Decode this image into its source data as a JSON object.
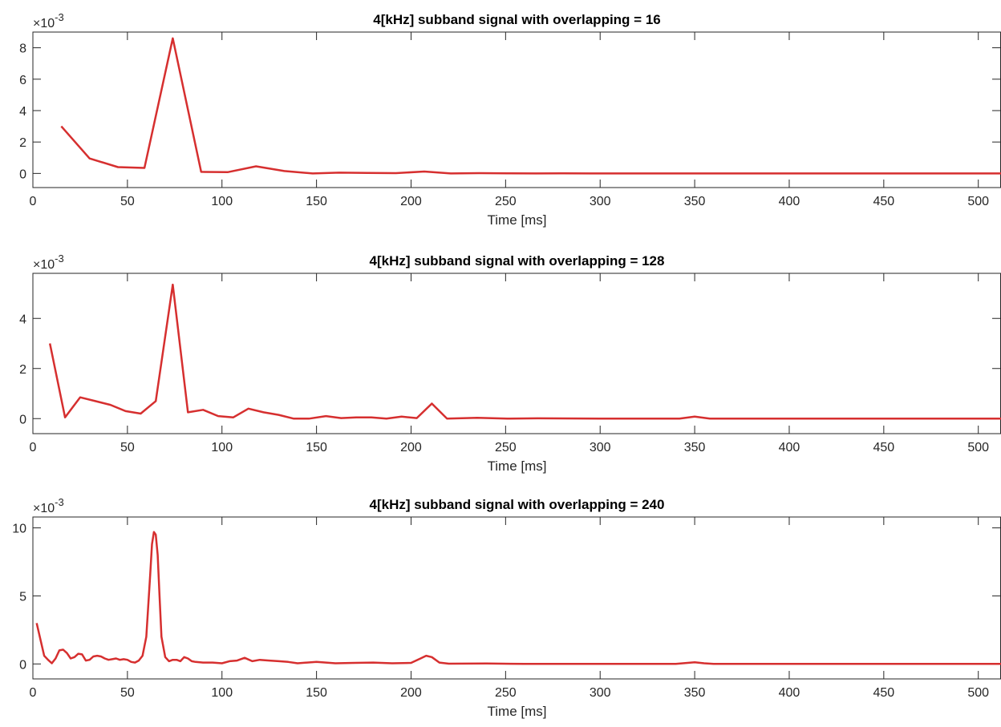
{
  "chart_data": [
    {
      "type": "line",
      "title": "4[kHz] subband signal with overlapping = 16",
      "xlabel": "Time [ms]",
      "ylabel": "",
      "y_scale_label": "×10",
      "y_scale_exponent": "-3",
      "xlim": [
        0,
        512
      ],
      "ylim": [
        -0.9,
        9.0
      ],
      "xticks": [
        0,
        50,
        100,
        150,
        200,
        250,
        300,
        350,
        400,
        450,
        500
      ],
      "yticks": [
        0,
        2,
        4,
        6,
        8
      ],
      "grid": false,
      "line_color": "#d62f2f",
      "series": [
        {
          "x": [
            15,
            30,
            45,
            59,
            74,
            89,
            103,
            118,
            133,
            148,
            162,
            177,
            192,
            207,
            221,
            236,
            251,
            266,
            280,
            295,
            310,
            325,
            339,
            354,
            369,
            384,
            398,
            413,
            428,
            443,
            457,
            472,
            487,
            502,
            512
          ],
          "values": [
            3.0,
            0.95,
            0.4,
            0.35,
            8.6,
            0.1,
            0.08,
            0.45,
            0.15,
            0.0,
            0.05,
            0.03,
            0.02,
            0.12,
            0.0,
            0.02,
            0.01,
            0.0,
            0.01,
            0.0,
            0.0,
            0.0,
            0.0,
            0.0,
            0.0,
            0.0,
            0.0,
            0.0,
            0.0,
            0.0,
            0.0,
            0.0,
            0.0,
            0.0,
            0.0
          ]
        }
      ]
    },
    {
      "type": "line",
      "title": "4[kHz] subband signal with overlapping = 128",
      "xlabel": "Time [ms]",
      "ylabel": "",
      "y_scale_label": "×10",
      "y_scale_exponent": "-3",
      "xlim": [
        0,
        512
      ],
      "ylim": [
        -0.6,
        5.8
      ],
      "xticks": [
        0,
        50,
        100,
        150,
        200,
        250,
        300,
        350,
        400,
        450,
        500
      ],
      "yticks": [
        0,
        2,
        4
      ],
      "grid": false,
      "line_color": "#d62f2f",
      "series": [
        {
          "x": [
            9,
            17,
            25,
            33,
            41,
            49,
            57,
            65,
            74,
            82,
            90,
            98,
            106,
            114,
            122,
            130,
            138,
            146,
            155,
            163,
            171,
            179,
            187,
            195,
            203,
            211,
            219,
            235,
            251,
            267,
            300,
            342,
            350,
            358,
            400,
            450,
            512
          ],
          "values": [
            3.0,
            0.05,
            0.85,
            0.7,
            0.55,
            0.3,
            0.2,
            0.7,
            5.35,
            0.25,
            0.35,
            0.1,
            0.05,
            0.4,
            0.25,
            0.15,
            0.0,
            0.0,
            0.1,
            0.02,
            0.05,
            0.05,
            0.0,
            0.08,
            0.02,
            0.6,
            0.0,
            0.03,
            0.0,
            0.01,
            0.0,
            0.0,
            0.08,
            0.0,
            0.0,
            0.0,
            0.0
          ]
        }
      ]
    },
    {
      "type": "line",
      "title": "4[kHz] subband signal with overlapping = 240",
      "xlabel": "Time [ms]",
      "ylabel": "",
      "y_scale_label": "×10",
      "y_scale_exponent": "-3",
      "xlim": [
        0,
        512
      ],
      "ylim": [
        -1.1,
        10.8
      ],
      "xticks": [
        0,
        50,
        100,
        150,
        200,
        250,
        300,
        350,
        400,
        450,
        500
      ],
      "yticks": [
        0,
        5,
        10
      ],
      "grid": false,
      "line_color": "#d62f2f",
      "series": [
        {
          "x": [
            2,
            4,
            6,
            8,
            10,
            12,
            14,
            16,
            18,
            20,
            22,
            24,
            26,
            28,
            30,
            32,
            34,
            36,
            38,
            40,
            42,
            44,
            46,
            48,
            50,
            52,
            54,
            56,
            58,
            60,
            62,
            63,
            64,
            65,
            66,
            67,
            68,
            70,
            72,
            74,
            76,
            78,
            80,
            82,
            84,
            86,
            90,
            95,
            100,
            104,
            108,
            112,
            116,
            120,
            125,
            130,
            135,
            140,
            145,
            150,
            155,
            160,
            170,
            180,
            190,
            200,
            205,
            208,
            211,
            215,
            220,
            240,
            260,
            280,
            300,
            320,
            340,
            350,
            355,
            360,
            400,
            450,
            512
          ],
          "values": [
            3.0,
            1.8,
            0.6,
            0.3,
            0.05,
            0.4,
            1.0,
            1.05,
            0.8,
            0.4,
            0.5,
            0.75,
            0.7,
            0.25,
            0.3,
            0.55,
            0.6,
            0.55,
            0.4,
            0.3,
            0.35,
            0.4,
            0.3,
            0.35,
            0.3,
            0.15,
            0.1,
            0.25,
            0.6,
            2.0,
            6.5,
            8.8,
            9.7,
            9.5,
            8.0,
            5.0,
            2.0,
            0.5,
            0.2,
            0.3,
            0.3,
            0.2,
            0.5,
            0.4,
            0.2,
            0.15,
            0.1,
            0.1,
            0.05,
            0.2,
            0.25,
            0.45,
            0.2,
            0.3,
            0.25,
            0.2,
            0.15,
            0.05,
            0.1,
            0.15,
            0.1,
            0.05,
            0.08,
            0.1,
            0.05,
            0.08,
            0.4,
            0.6,
            0.5,
            0.1,
            0.02,
            0.03,
            0.0,
            0.0,
            0.0,
            0.0,
            0.0,
            0.12,
            0.05,
            0.0,
            0.0,
            0.0,
            0.0
          ]
        }
      ]
    }
  ]
}
